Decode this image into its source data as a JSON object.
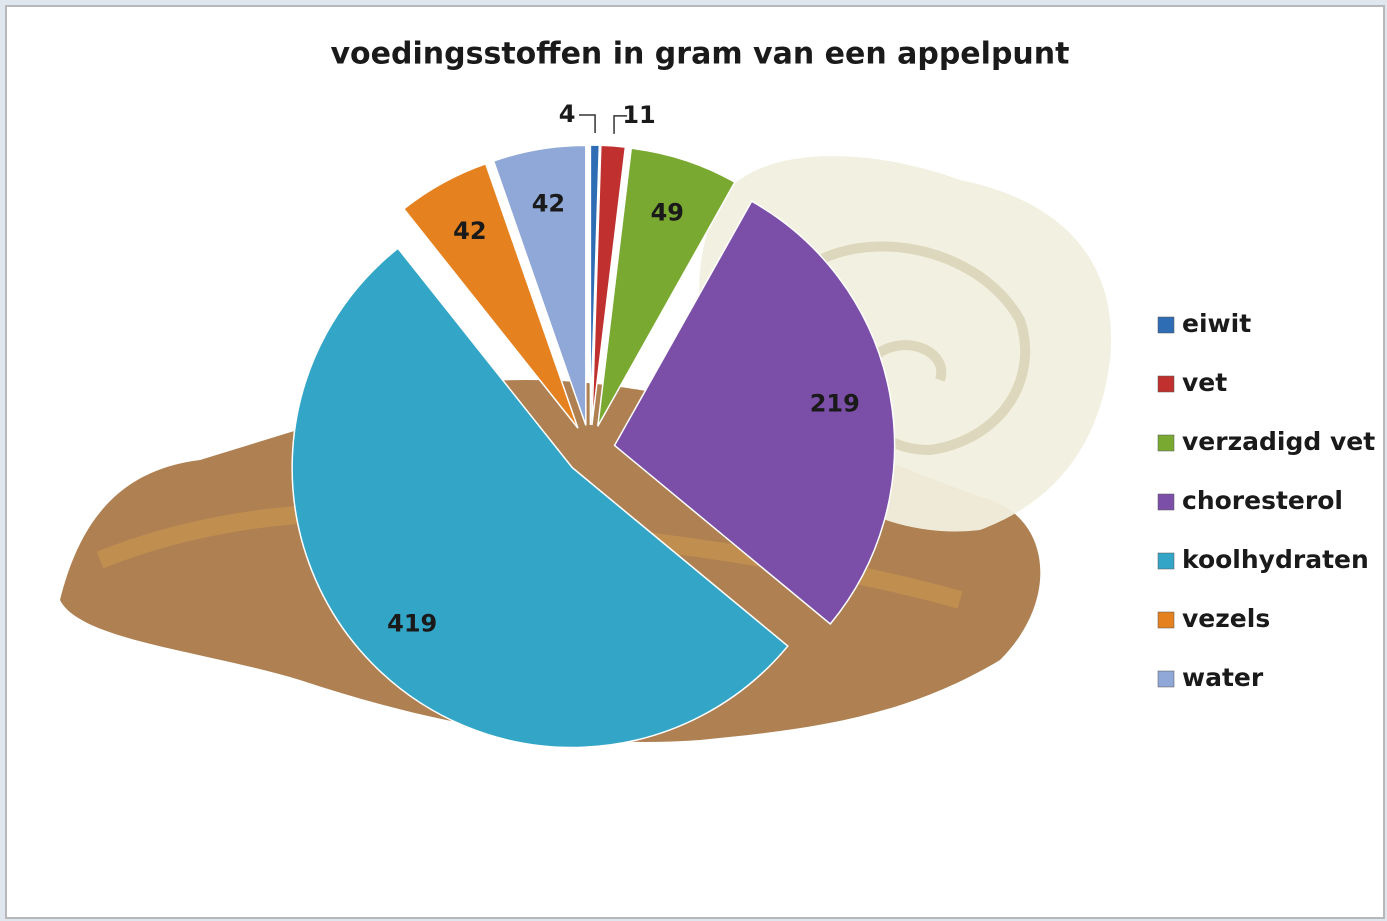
{
  "chart_data": {
    "type": "pie",
    "title": "voedingsstoffen in gram  van een appelpunt",
    "categories": [
      "eiwit",
      "vet",
      "verzadigd vet",
      "choresterol",
      "koolhydraten",
      "vezels",
      "water"
    ],
    "values": [
      4,
      11,
      49,
      219,
      419,
      42,
      42
    ],
    "colors": [
      "#2e6db4",
      "#c0302f",
      "#7aa932",
      "#7b4fa8",
      "#33a6c7",
      "#e5821f",
      "#8fa8d8"
    ],
    "legend": "right"
  }
}
